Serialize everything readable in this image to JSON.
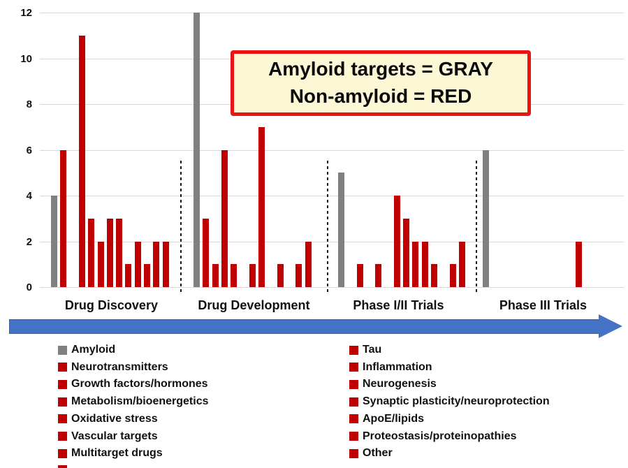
{
  "annotation": {
    "line1": "Amyloid targets = GRAY",
    "line2": "Non-amyloid = RED"
  },
  "colors": {
    "amyloid_gray": "#808080",
    "non_amyloid_red": "#c00000",
    "gridline": "#d9d9d9",
    "arrow_blue": "#4472c4",
    "annotation_border_red": "#ee1313",
    "annotation_fill_cream": "#fcf8d5"
  },
  "chart_data": {
    "type": "bar",
    "title": "",
    "xlabel": "",
    "ylabel": "",
    "ylim": [
      0,
      12
    ],
    "yticks": [
      0,
      2,
      4,
      6,
      8,
      10,
      12
    ],
    "grid": true,
    "legend_position": "bottom",
    "group_labels": [
      "Drug Discovery",
      "Drug Development",
      "Phase I/II Trials",
      "Phase III Trials"
    ],
    "categories": [
      "Amyloid",
      "Tau",
      "Neurotransmitters",
      "Inflammation",
      "Growth factors/hormones",
      "Neurogenesis",
      "Metabolism/bioenergetics",
      "Synaptic plasticity/neuroprotection",
      "Oxidative stress",
      "ApoE/lipids",
      "Vascular targets",
      "Proteostasis/proteinopathies",
      "Multitarget drugs",
      "Other"
    ],
    "amyloid_category_index": 0,
    "series": [
      {
        "name": "Drug Discovery",
        "values": [
          4,
          6,
          0,
          11,
          3,
          2,
          3,
          3,
          1,
          2,
          1,
          2,
          2,
          0
        ]
      },
      {
        "name": "Drug Development",
        "values": [
          12,
          3,
          1,
          6,
          1,
          0,
          1,
          7,
          0,
          1,
          0,
          1,
          2,
          0
        ]
      },
      {
        "name": "Phase I/II Trials",
        "values": [
          5,
          0,
          1,
          0,
          1,
          0,
          4,
          3,
          2,
          2,
          1,
          0,
          1,
          2
        ]
      },
      {
        "name": "Phase III Trials",
        "values": [
          6,
          0,
          0,
          0,
          0,
          0,
          0,
          0,
          0,
          0,
          2,
          0,
          0,
          0
        ]
      }
    ]
  }
}
